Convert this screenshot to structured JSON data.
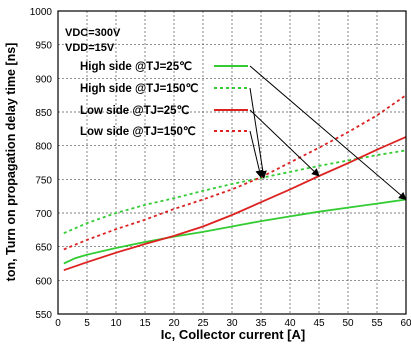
{
  "chart_data": {
    "type": "line",
    "title": "",
    "xlabel": "Ic, Collector current [A]",
    "ylabel": "ton, Turn on propagation delay time [ns]",
    "xlim": [
      0,
      60
    ],
    "ylim": [
      550,
      1000
    ],
    "xticks": [
      0,
      5,
      10,
      15,
      20,
      25,
      30,
      35,
      40,
      45,
      50,
      55,
      60
    ],
    "yticks": [
      550,
      600,
      650,
      700,
      750,
      800,
      850,
      900,
      950,
      1000
    ],
    "grid": true,
    "conditions": [
      "VDC=300V",
      "VDD=15V"
    ],
    "legend_position": "top-left",
    "series": [
      {
        "name": "High side @TJ=25℃",
        "color": "#33cc33",
        "dash": "solid",
        "x": [
          1,
          3,
          5,
          10,
          15,
          20,
          25,
          30,
          35,
          40,
          45,
          50,
          55,
          60
        ],
        "y": [
          625,
          633,
          638,
          648,
          657,
          665,
          672,
          680,
          688,
          695,
          702,
          708,
          714,
          720
        ]
      },
      {
        "name": "High side @TJ=150℃",
        "color": "#33cc33",
        "dash": "dotted",
        "x": [
          1,
          5,
          10,
          15,
          20,
          25,
          30,
          35,
          40,
          45,
          50,
          55,
          60
        ],
        "y": [
          670,
          685,
          700,
          712,
          722,
          733,
          743,
          752,
          761,
          770,
          778,
          786,
          793
        ]
      },
      {
        "name": "Low side @TJ=25℃",
        "color": "#dd2222",
        "dash": "solid",
        "x": [
          1,
          5,
          10,
          15,
          20,
          25,
          30,
          35,
          40,
          45,
          50,
          55,
          60
        ],
        "y": [
          615,
          627,
          641,
          654,
          666,
          680,
          697,
          716,
          735,
          755,
          774,
          794,
          813
        ]
      },
      {
        "name": "Low side @TJ=150℃",
        "color": "#dd2222",
        "dash": "dotted",
        "x": [
          1,
          5,
          10,
          15,
          20,
          25,
          30,
          35,
          40,
          45,
          50,
          55,
          60
        ],
        "y": [
          646,
          660,
          676,
          690,
          706,
          720,
          735,
          753,
          775,
          797,
          820,
          845,
          875
        ]
      }
    ]
  }
}
